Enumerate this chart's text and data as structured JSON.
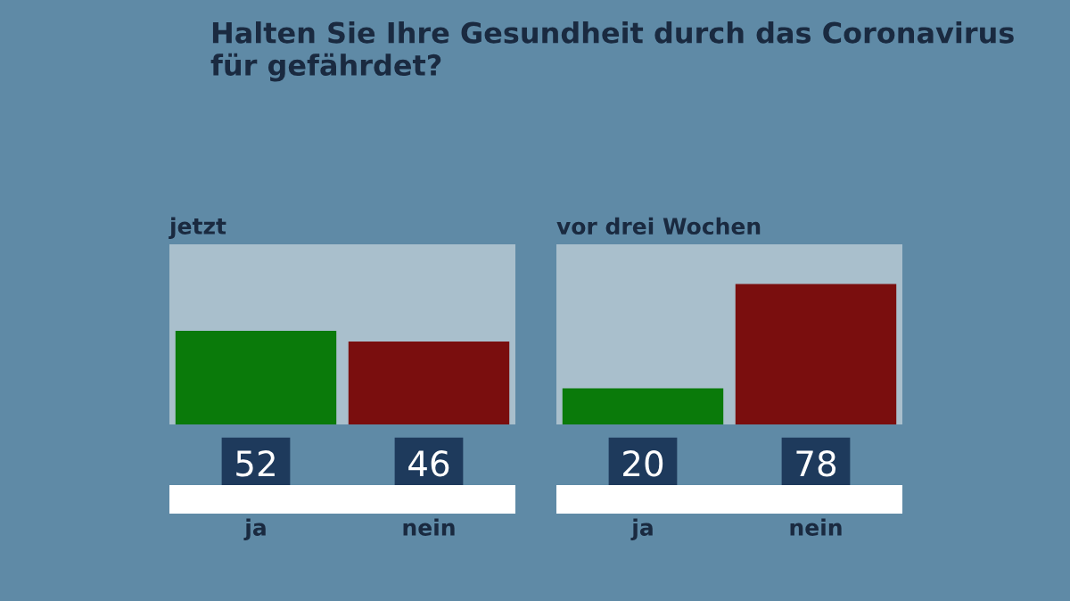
{
  "chart_data": [
    {
      "type": "bar",
      "title": "Halten Sie Ihre Gesundheit durch das Coronavirus\nfür gefährdet?",
      "subtitle": "jetzt",
      "categories": [
        "ja",
        "nein"
      ],
      "values": [
        52,
        46
      ],
      "colors": [
        "#0a7a0a",
        "#7a0e0e"
      ],
      "ylim": [
        0,
        100
      ],
      "data_labels": true,
      "tick_labels": "x",
      "grid": false
    },
    {
      "type": "bar",
      "subtitle": "vor drei Wochen",
      "categories": [
        "ja",
        "nein"
      ],
      "values": [
        20,
        78
      ],
      "colors": [
        "#0a7a0a",
        "#7a0e0e"
      ],
      "ylim": [
        0,
        100
      ],
      "data_labels": true,
      "tick_labels": "x",
      "grid": false
    }
  ]
}
